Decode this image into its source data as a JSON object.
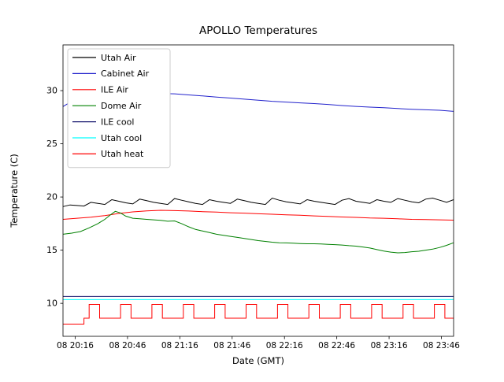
{
  "chart_data": {
    "type": "line",
    "title": "APOLLO Temperatures",
    "xlabel": "Date (GMT)",
    "ylabel": "Temperature (C)",
    "x_unit": "minutes after 08 20:00 GMT",
    "xlim": [
      9,
      233
    ],
    "ylim": [
      6.9,
      34.3
    ],
    "yticks": [
      10,
      15,
      20,
      25,
      30
    ],
    "xticks": {
      "values": [
        16,
        46,
        76,
        106,
        136,
        166,
        196,
        226
      ],
      "labels": [
        "08 20:16",
        "08 20:46",
        "08 21:16",
        "08 21:46",
        "08 22:16",
        "08 22:46",
        "08 23:16",
        "08 23:46"
      ]
    },
    "grid": false,
    "legend_position": "upper left",
    "series": [
      {
        "name": "Utah Air",
        "color": "#000000",
        "x": [
          9,
          13,
          17,
          21,
          25,
          29,
          33,
          37,
          41,
          45,
          49,
          53,
          57,
          61,
          65,
          69,
          73,
          77,
          81,
          85,
          89,
          93,
          97,
          101,
          105,
          109,
          113,
          117,
          121,
          125,
          129,
          133,
          137,
          141,
          145,
          149,
          153,
          157,
          161,
          165,
          169,
          173,
          177,
          181,
          185,
          189,
          193,
          197,
          201,
          205,
          209,
          213,
          217,
          221,
          225,
          229,
          233
        ],
        "y": [
          19.1,
          19.25,
          19.2,
          19.15,
          19.5,
          19.4,
          19.3,
          19.75,
          19.6,
          19.45,
          19.35,
          19.8,
          19.65,
          19.5,
          19.4,
          19.3,
          19.85,
          19.7,
          19.55,
          19.4,
          19.3,
          19.75,
          19.6,
          19.5,
          19.4,
          19.8,
          19.65,
          19.5,
          19.4,
          19.3,
          19.9,
          19.7,
          19.55,
          19.45,
          19.35,
          19.75,
          19.6,
          19.5,
          19.4,
          19.3,
          19.7,
          19.85,
          19.6,
          19.5,
          19.4,
          19.75,
          19.6,
          19.5,
          19.85,
          19.7,
          19.55,
          19.45,
          19.8,
          19.9,
          19.7,
          19.5,
          19.75
        ]
      },
      {
        "name": "Cabinet Air",
        "color": "#2222cc",
        "x": [
          9,
          17,
          25,
          33,
          41,
          49,
          57,
          65,
          73,
          81,
          89,
          97,
          105,
          113,
          121,
          129,
          137,
          145,
          153,
          161,
          169,
          177,
          185,
          193,
          201,
          209,
          217,
          225,
          233
        ],
        "y": [
          28.5,
          29.3,
          29.65,
          29.8,
          29.85,
          29.8,
          29.75,
          29.72,
          29.7,
          29.6,
          29.5,
          29.4,
          29.3,
          29.2,
          29.1,
          29.0,
          28.92,
          28.85,
          28.78,
          28.7,
          28.6,
          28.52,
          28.45,
          28.4,
          28.32,
          28.25,
          28.2,
          28.15,
          28.05
        ]
      },
      {
        "name": "ILE Air",
        "color": "#ff0000",
        "x": [
          9,
          17,
          25,
          33,
          41,
          49,
          57,
          65,
          73,
          81,
          89,
          97,
          105,
          113,
          121,
          129,
          137,
          145,
          153,
          161,
          169,
          177,
          185,
          193,
          201,
          209,
          217,
          225,
          233
        ],
        "y": [
          17.9,
          18.0,
          18.1,
          18.25,
          18.45,
          18.6,
          18.7,
          18.75,
          18.72,
          18.68,
          18.62,
          18.58,
          18.52,
          18.48,
          18.42,
          18.38,
          18.32,
          18.28,
          18.22,
          18.18,
          18.12,
          18.08,
          18.02,
          18.0,
          17.95,
          17.9,
          17.88,
          17.85,
          17.82
        ]
      },
      {
        "name": "Dome Air",
        "color": "#008000",
        "x": [
          9,
          14,
          19,
          24,
          29,
          33,
          36,
          39,
          42,
          45,
          49,
          53,
          57,
          61,
          65,
          69,
          73,
          77,
          81,
          85,
          89,
          93,
          97,
          101,
          105,
          109,
          113,
          117,
          121,
          125,
          129,
          133,
          137,
          141,
          145,
          149,
          153,
          157,
          161,
          165,
          169,
          173,
          177,
          181,
          185,
          189,
          193,
          197,
          201,
          205,
          209,
          213,
          217,
          221,
          225,
          229,
          233
        ],
        "y": [
          16.5,
          16.6,
          16.75,
          17.1,
          17.5,
          17.9,
          18.3,
          18.65,
          18.5,
          18.2,
          18.0,
          17.95,
          17.9,
          17.85,
          17.8,
          17.72,
          17.75,
          17.5,
          17.2,
          16.95,
          16.8,
          16.65,
          16.5,
          16.4,
          16.3,
          16.2,
          16.1,
          16.0,
          15.9,
          15.82,
          15.75,
          15.7,
          15.68,
          15.65,
          15.62,
          15.6,
          15.6,
          15.58,
          15.55,
          15.52,
          15.48,
          15.42,
          15.38,
          15.3,
          15.2,
          15.05,
          14.92,
          14.82,
          14.75,
          14.78,
          14.85,
          14.9,
          15.0,
          15.1,
          15.25,
          15.45,
          15.7
        ]
      },
      {
        "name": "ILE cool",
        "color": "#191970",
        "x": [
          9,
          233
        ],
        "y": [
          10.65,
          10.65
        ]
      },
      {
        "name": "Utah cool",
        "color": "#00ffff",
        "x": [
          9,
          233
        ],
        "y": [
          10.35,
          10.35
        ]
      },
      {
        "name": "Utah heat",
        "color": "#ff0000",
        "x": [
          9,
          21,
          21,
          24,
          24,
          30,
          30,
          42,
          42,
          48,
          48,
          60,
          60,
          66,
          66,
          78,
          78,
          84,
          84,
          96,
          96,
          102,
          102,
          114,
          114,
          120,
          120,
          132,
          132,
          138,
          138,
          150,
          150,
          156,
          156,
          168,
          168,
          174,
          174,
          186,
          186,
          192,
          192,
          204,
          204,
          210,
          210,
          222,
          222,
          228,
          228,
          233
        ],
        "y": [
          8.05,
          8.05,
          8.6,
          8.6,
          9.9,
          9.9,
          8.6,
          8.6,
          9.9,
          9.9,
          8.6,
          8.6,
          9.9,
          9.9,
          8.6,
          8.6,
          9.9,
          9.9,
          8.6,
          8.6,
          9.9,
          9.9,
          8.6,
          8.6,
          9.9,
          9.9,
          8.6,
          8.6,
          9.9,
          9.9,
          8.6,
          8.6,
          9.9,
          9.9,
          8.6,
          8.6,
          9.9,
          9.9,
          8.6,
          8.6,
          9.9,
          9.9,
          8.6,
          8.6,
          9.9,
          9.9,
          8.6,
          8.6,
          9.9,
          9.9,
          8.6,
          8.6
        ]
      }
    ]
  }
}
